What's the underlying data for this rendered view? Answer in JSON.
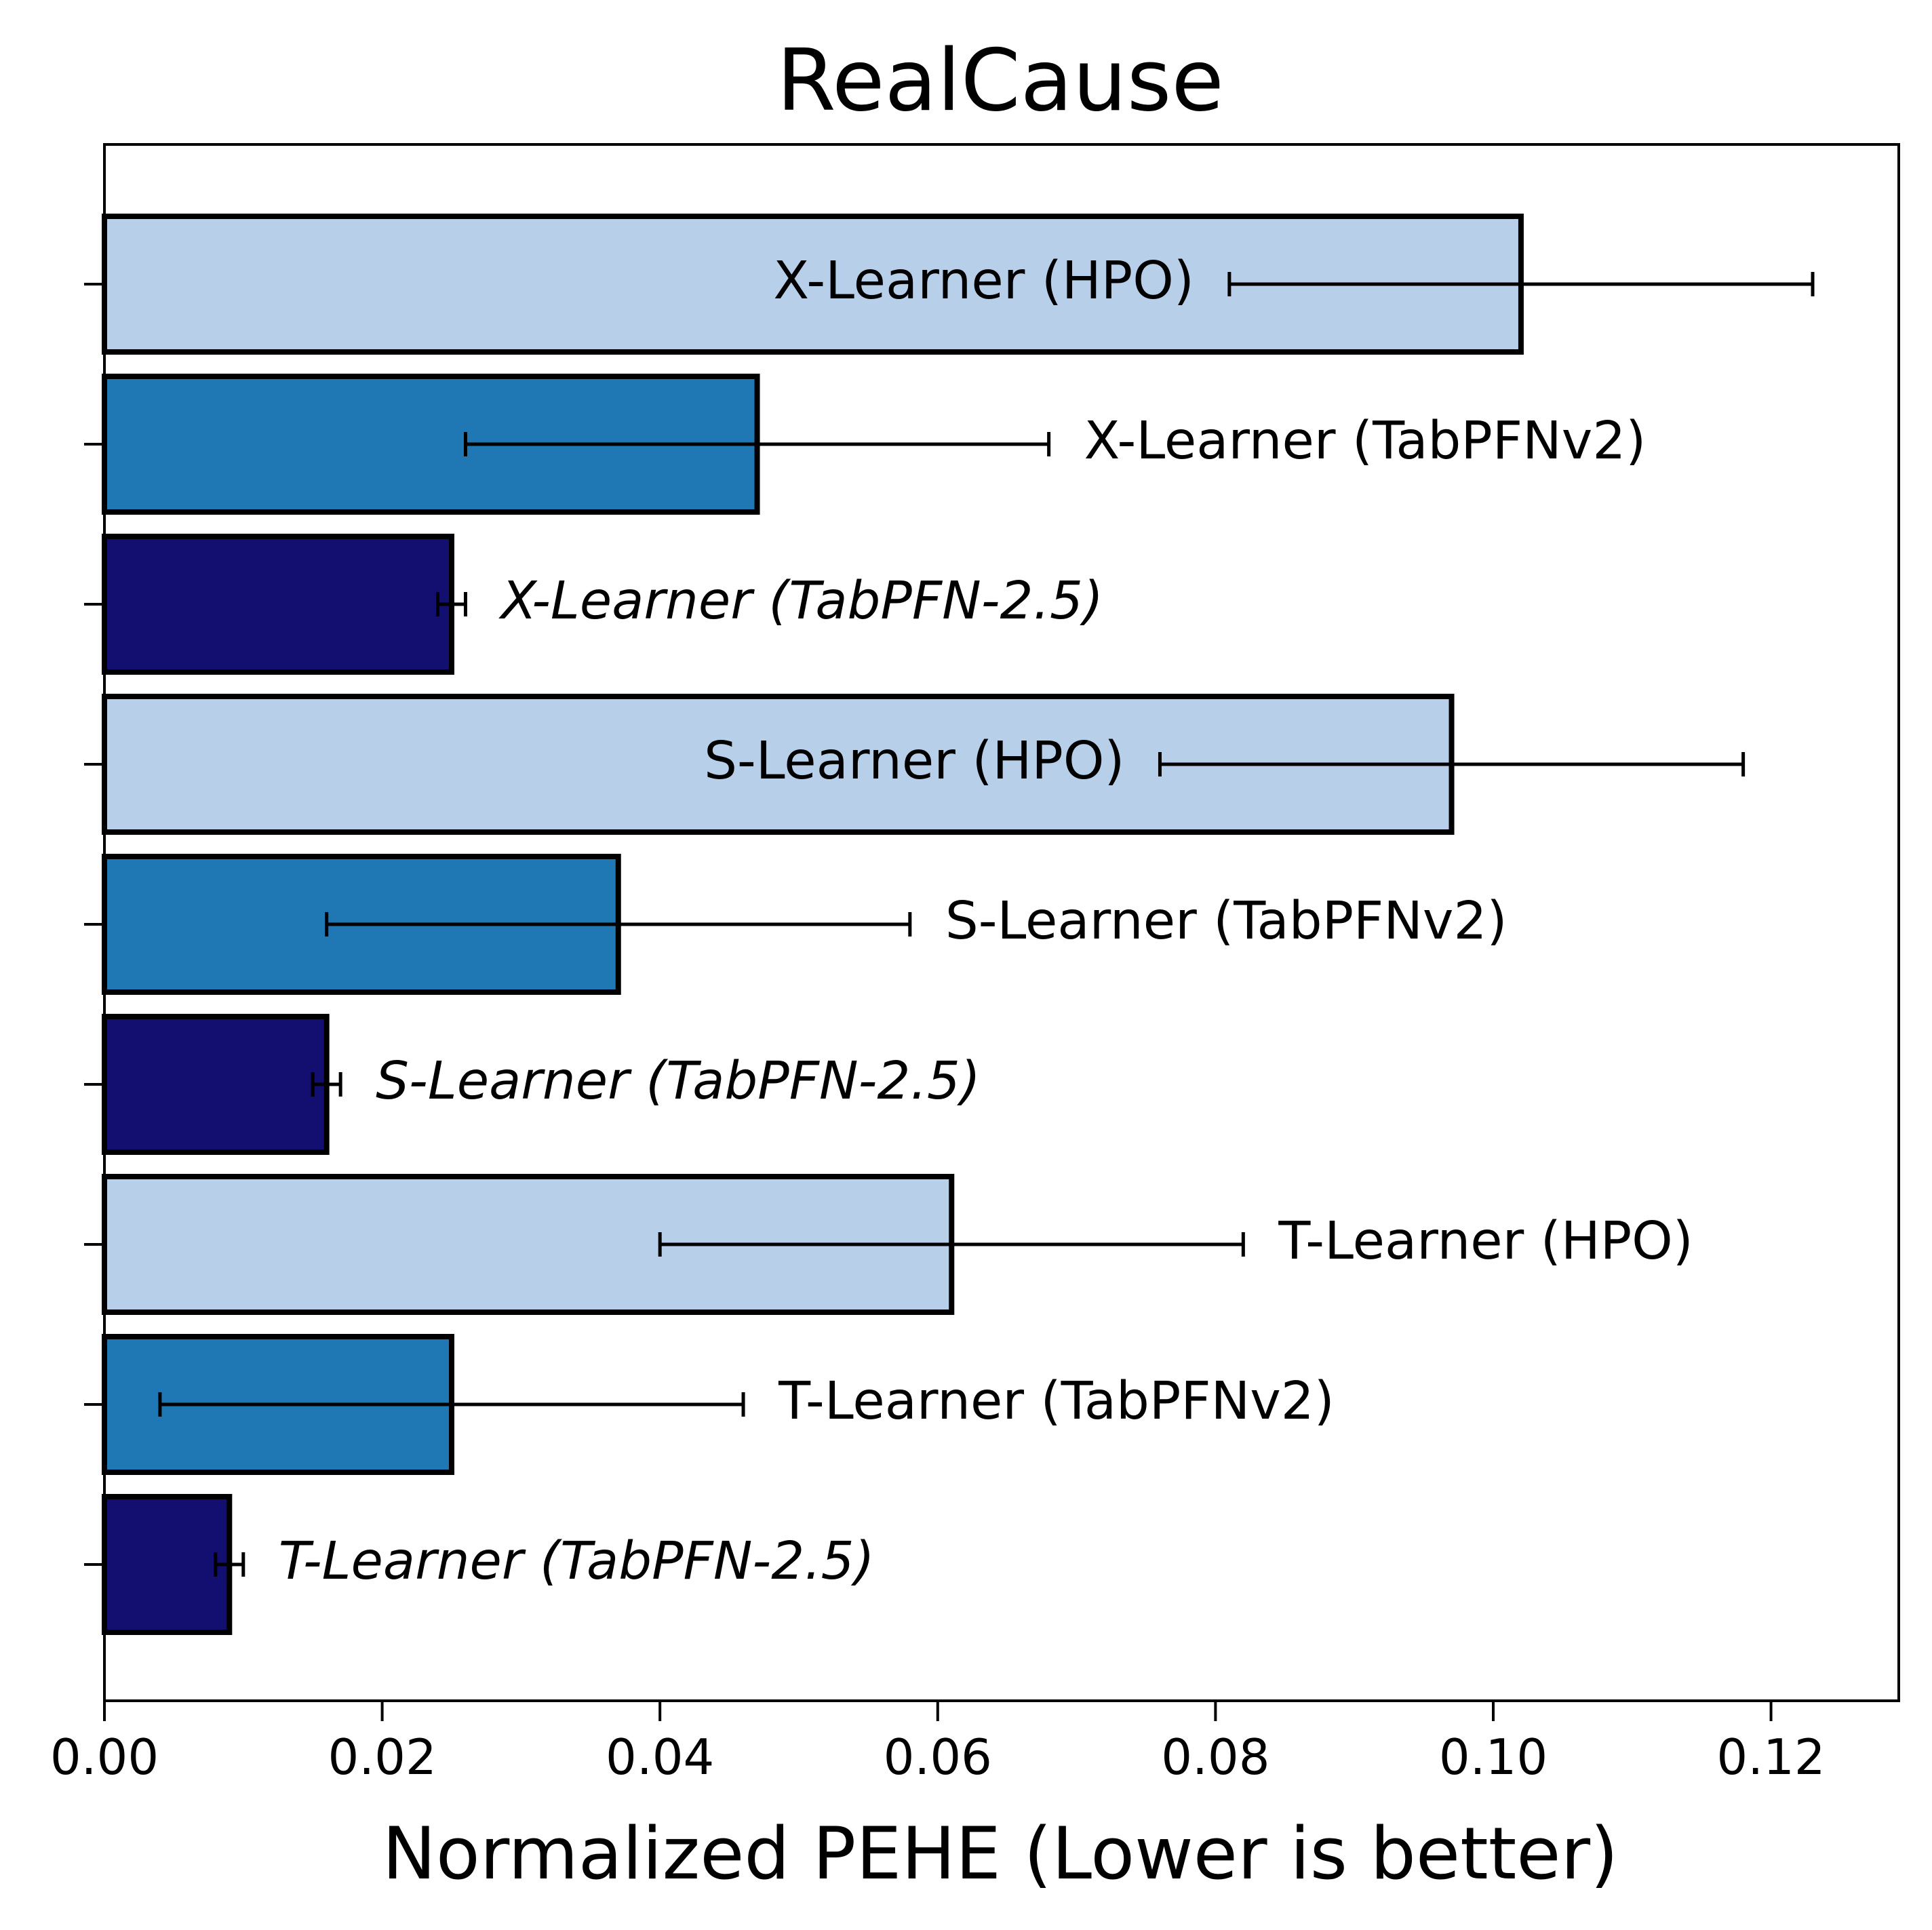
{
  "chart_data": {
    "type": "bar",
    "orientation": "horizontal",
    "title": "RealCause",
    "xlabel": "Normalized PEHE (Lower is better)",
    "ylabel": "",
    "xlim": [
      0,
      0.1292
    ],
    "xticks": [
      "0.00",
      "0.02",
      "0.04",
      "0.06",
      "0.08",
      "0.10",
      "0.12"
    ],
    "xtick_values": [
      0.0,
      0.02,
      0.04,
      0.06,
      0.08,
      0.1,
      0.12
    ],
    "grid": false,
    "colors": {
      "HPO": "#b8cfea",
      "TabPFNv2": "#1f77b4",
      "TabPFN-2.5": "#120f70",
      "edge": "#000000"
    },
    "bars": [
      {
        "label": "X-Learner (HPO)",
        "value": 0.102,
        "err_low": 0.081,
        "err_high": 0.123,
        "group": "HPO",
        "italic": false,
        "label_inside": true
      },
      {
        "label": "X-Learner (TabPFNv2)",
        "value": 0.047,
        "err_low": 0.026,
        "err_high": 0.068,
        "group": "TabPFNv2",
        "italic": false,
        "label_inside": false
      },
      {
        "label": "X-Learner (TabPFN-2.5)",
        "value": 0.025,
        "err_low": 0.024,
        "err_high": 0.026,
        "group": "TabPFN-2.5",
        "italic": true,
        "label_inside": false
      },
      {
        "label": "S-Learner (HPO)",
        "value": 0.097,
        "err_low": 0.076,
        "err_high": 0.118,
        "group": "HPO",
        "italic": false,
        "label_inside": true
      },
      {
        "label": "S-Learner (TabPFNv2)",
        "value": 0.037,
        "err_low": 0.016,
        "err_high": 0.058,
        "group": "TabPFNv2",
        "italic": false,
        "label_inside": false
      },
      {
        "label": "S-Learner (TabPFN-2.5)",
        "value": 0.016,
        "err_low": 0.015,
        "err_high": 0.017,
        "group": "TabPFN-2.5",
        "italic": true,
        "label_inside": false
      },
      {
        "label": "T-Learner (HPO)",
        "value": 0.061,
        "err_low": 0.04,
        "err_high": 0.082,
        "group": "HPO",
        "italic": false,
        "label_inside": false
      },
      {
        "label": "T-Learner (TabPFNv2)",
        "value": 0.025,
        "err_low": 0.004,
        "err_high": 0.046,
        "group": "TabPFNv2",
        "italic": false,
        "label_inside": false
      },
      {
        "label": "T-Learner (TabPFN-2.5)",
        "value": 0.009,
        "err_low": 0.008,
        "err_high": 0.01,
        "group": "TabPFN-2.5",
        "italic": true,
        "label_inside": false
      }
    ]
  }
}
